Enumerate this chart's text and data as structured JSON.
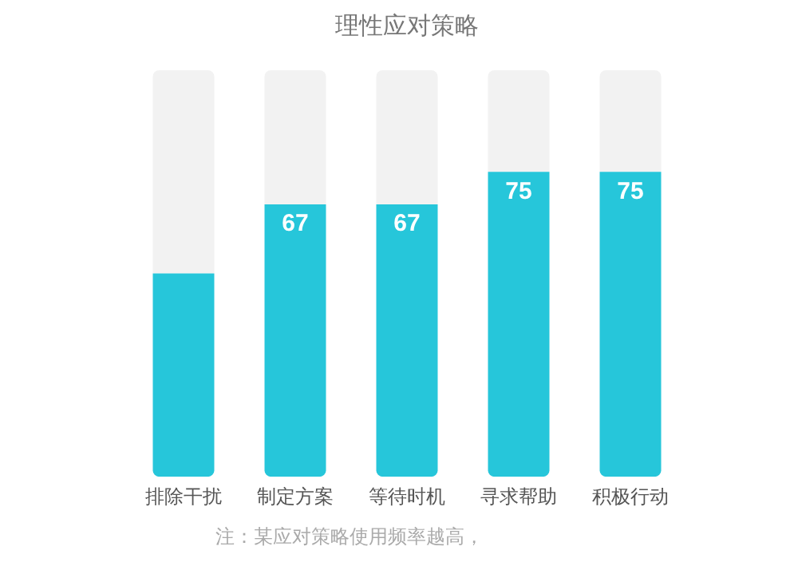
{
  "chart_data": {
    "type": "bar",
    "title": "理性应对策略",
    "categories": [
      "排除干扰",
      "制定方案",
      "等待时机",
      "寻求帮助",
      "积极行动"
    ],
    "stacked": true,
    "series": [
      {
        "color": "#26c6da",
        "values": [
          50,
          67,
          67,
          75,
          75
        ],
        "value_labels": [
          null,
          "67",
          "67",
          "75",
          "75"
        ]
      },
      {
        "color": "#f2f2f2",
        "values": [
          50,
          33,
          33,
          25,
          25
        ]
      }
    ],
    "ylim": [
      0,
      100
    ],
    "tick_labels": "x",
    "grid": false,
    "legend": false,
    "annotations": [
      "注：某应对策略使用频率越高，"
    ]
  }
}
